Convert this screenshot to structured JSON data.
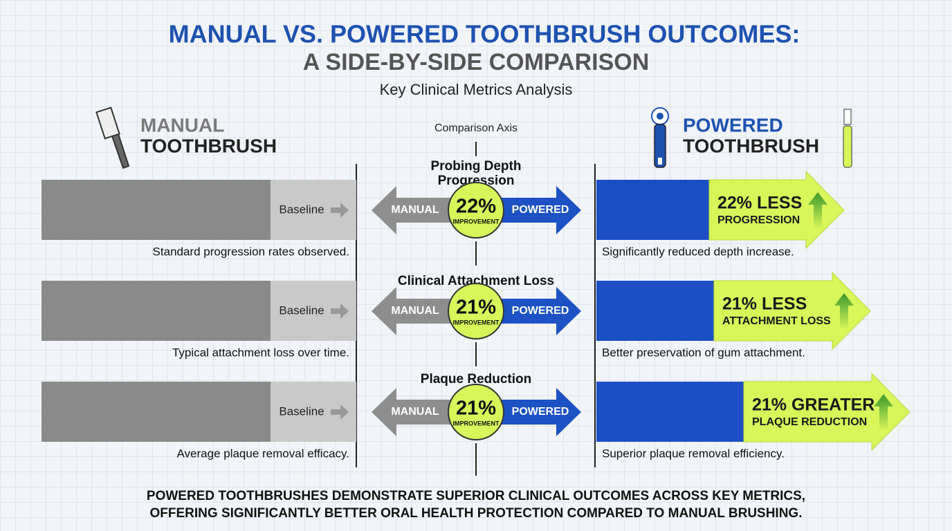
{
  "title": {
    "line1": "MANUAL VS. POWERED TOOTHBRUSH OUTCOMES:",
    "line2": "A SIDE-BY-SIDE COMPARISON"
  },
  "subtitle": "Key Clinical Metrics Analysis",
  "left_header": {
    "line1": "MANUAL",
    "line2": "TOOTHBRUSH"
  },
  "axis_label": "Comparison Axis",
  "right_header": {
    "line1": "POWERED",
    "line2": "TOOTHBRUSH"
  },
  "rows": [
    {
      "metric_lines": [
        "Probing Depth",
        "Progression"
      ],
      "manual_bar_label": "Baseline",
      "manual_note": "Standard progression rates observed.",
      "left_arrow": "MANUAL",
      "right_arrow": "POWERED",
      "improvement": "22%",
      "improvement_label": "IMPROVEMENT",
      "result_main": "22% LESS",
      "result_sub": "PROGRESSION",
      "powered_note": "Significantly reduced depth increase."
    },
    {
      "metric_lines": [
        "Clinical Attachment Loss"
      ],
      "manual_bar_label": "Baseline",
      "manual_note": "Typical attachment loss over time.",
      "left_arrow": "MANUAL",
      "right_arrow": "POWERED",
      "improvement": "21%",
      "improvement_label": "IMPROVEMENT",
      "result_main": "21% LESS",
      "result_sub": "ATTACHMENT LOSS",
      "powered_note": "Better preservation of gum attachment."
    },
    {
      "metric_lines": [
        "Plaque Reduction"
      ],
      "manual_bar_label": "Baseline",
      "manual_note": "Average plaque removal efficacy.",
      "left_arrow": "MANUAL",
      "right_arrow": "POWERED",
      "improvement": "21%",
      "improvement_label": "IMPROVEMENT",
      "result_main": "21% GREATER",
      "result_sub": "PLAQUE REDUCTION",
      "powered_note": "Superior plaque removal efficiency."
    }
  ],
  "footer": {
    "line1": "POWERED TOOTHBRUSHES DEMONSTRATE SUPERIOR CLINICAL OUTCOMES ACROSS KEY METRICS,",
    "line2": "OFFERING SIGNIFICANTLY BETTER ORAL HEALTH PROTECTION COMPARED TO MANUAL BRUSHING."
  }
}
